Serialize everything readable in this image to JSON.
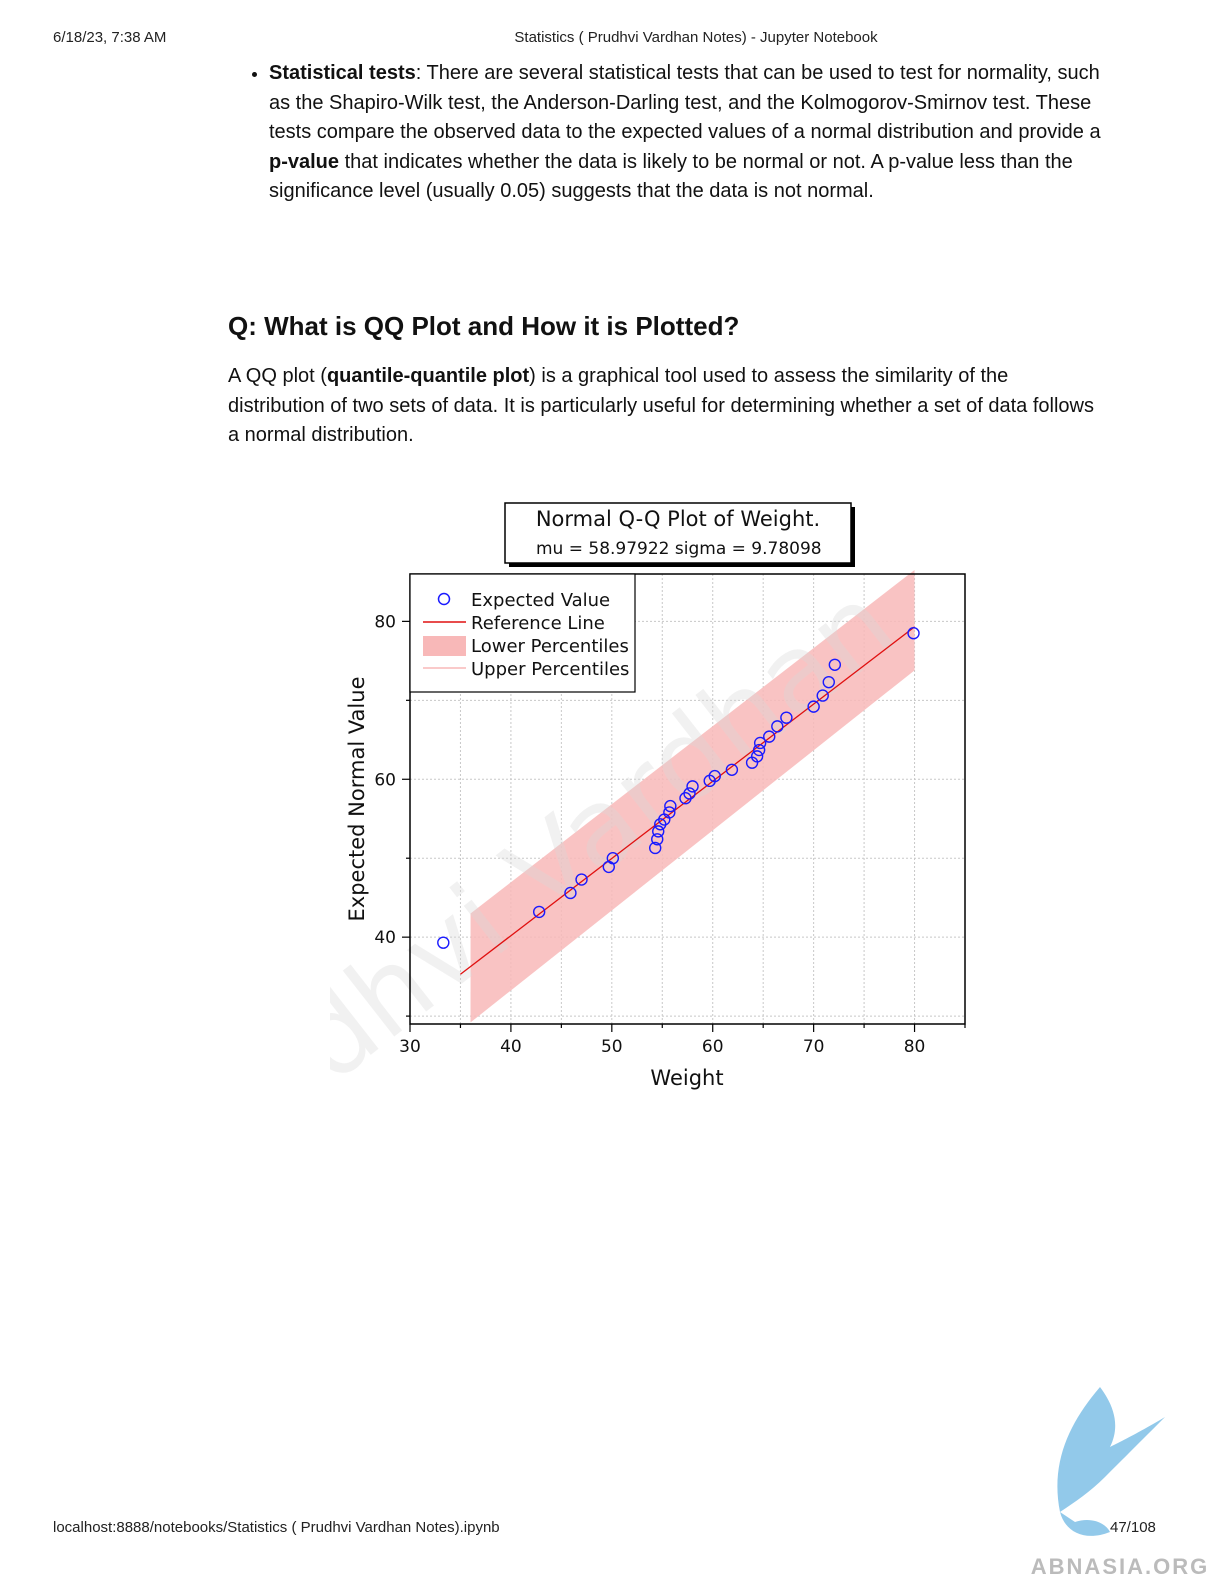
{
  "header": {
    "date": "6/18/23, 7:38 AM",
    "title": "Statistics ( Prudhvi Vardhan Notes) - Jupyter Notebook"
  },
  "bullet": {
    "term": "Statistical tests",
    "text_a": ": There are several statistical tests that can be used to test for normality, such as the Shapiro-Wilk test, the Anderson-Darling test, and the Kolmogorov-Smirnov test. These tests compare the observed data to the expected values of a normal distribution and provide a ",
    "bold_b": "p-value",
    "text_c": " that indicates whether the data is likely to be normal or not. A p-value less than the significance level (usually 0.05) suggests that the data is not normal."
  },
  "section": {
    "heading": "Q: What is QQ Plot and How it is Plotted?",
    "intro_a": "A QQ plot (",
    "intro_bold": "quantile-quantile plot",
    "intro_c": ") is a graphical tool used to assess the similarity of the distribution of two sets of data. It is particularly useful for determining whether a set of data follows a normal distribution."
  },
  "chart_data": {
    "type": "scatter",
    "title": "Normal Q-Q Plot of Weight.",
    "subtitle": "mu = 58.97922  sigma = 9.78098",
    "xlabel": "Weight",
    "ylabel": "Expected Normal Value",
    "xlim": [
      30,
      85
    ],
    "ylim": [
      29,
      86
    ],
    "xticks": [
      30,
      40,
      50,
      60,
      70,
      80
    ],
    "yticks": [
      40,
      60,
      80
    ],
    "grid": true,
    "legend_position": "top-left",
    "legend": [
      "Expected Value",
      "Reference Line",
      "Lower Percentiles",
      "Upper Percentiles"
    ],
    "colors": {
      "points": "#1a1aff",
      "reference_line": "#e01010",
      "band": "#f8b8b8"
    },
    "reference_line": {
      "x": [
        35,
        80
      ],
      "y": [
        35.3,
        79.3
      ]
    },
    "band": {
      "x": [
        36,
        80
      ],
      "upper": [
        43,
        86.5
      ],
      "lower": [
        29.2,
        73.8
      ]
    },
    "points": [
      [
        33.3,
        39.3
      ],
      [
        42.8,
        43.2
      ],
      [
        45.9,
        45.6
      ],
      [
        47.0,
        47.3
      ],
      [
        49.7,
        48.9
      ],
      [
        50.1,
        50.0
      ],
      [
        54.3,
        51.3
      ],
      [
        54.5,
        52.4
      ],
      [
        54.6,
        53.4
      ],
      [
        54.8,
        54.3
      ],
      [
        55.2,
        54.9
      ],
      [
        55.7,
        55.8
      ],
      [
        55.8,
        56.6
      ],
      [
        57.3,
        57.6
      ],
      [
        57.7,
        58.2
      ],
      [
        58.0,
        59.1
      ],
      [
        59.7,
        59.8
      ],
      [
        60.2,
        60.4
      ],
      [
        61.9,
        61.2
      ],
      [
        63.9,
        62.1
      ],
      [
        64.4,
        62.9
      ],
      [
        64.6,
        63.7
      ],
      [
        64.7,
        64.6
      ],
      [
        65.6,
        65.4
      ],
      [
        66.4,
        66.7
      ],
      [
        67.3,
        67.8
      ],
      [
        70.0,
        69.2
      ],
      [
        70.9,
        70.6
      ],
      [
        71.5,
        72.3
      ],
      [
        72.1,
        74.5
      ],
      [
        79.9,
        78.5
      ]
    ]
  },
  "footer": {
    "url": "localhost:8888/notebooks/Statistics ( Prudhvi Vardhan Notes).ipynb",
    "page": "47/108"
  },
  "watermark": {
    "chart_text": "Prudhvi Vardhan",
    "logo_text": "ABNASIA.ORG",
    "color": "#7fbfe6"
  }
}
